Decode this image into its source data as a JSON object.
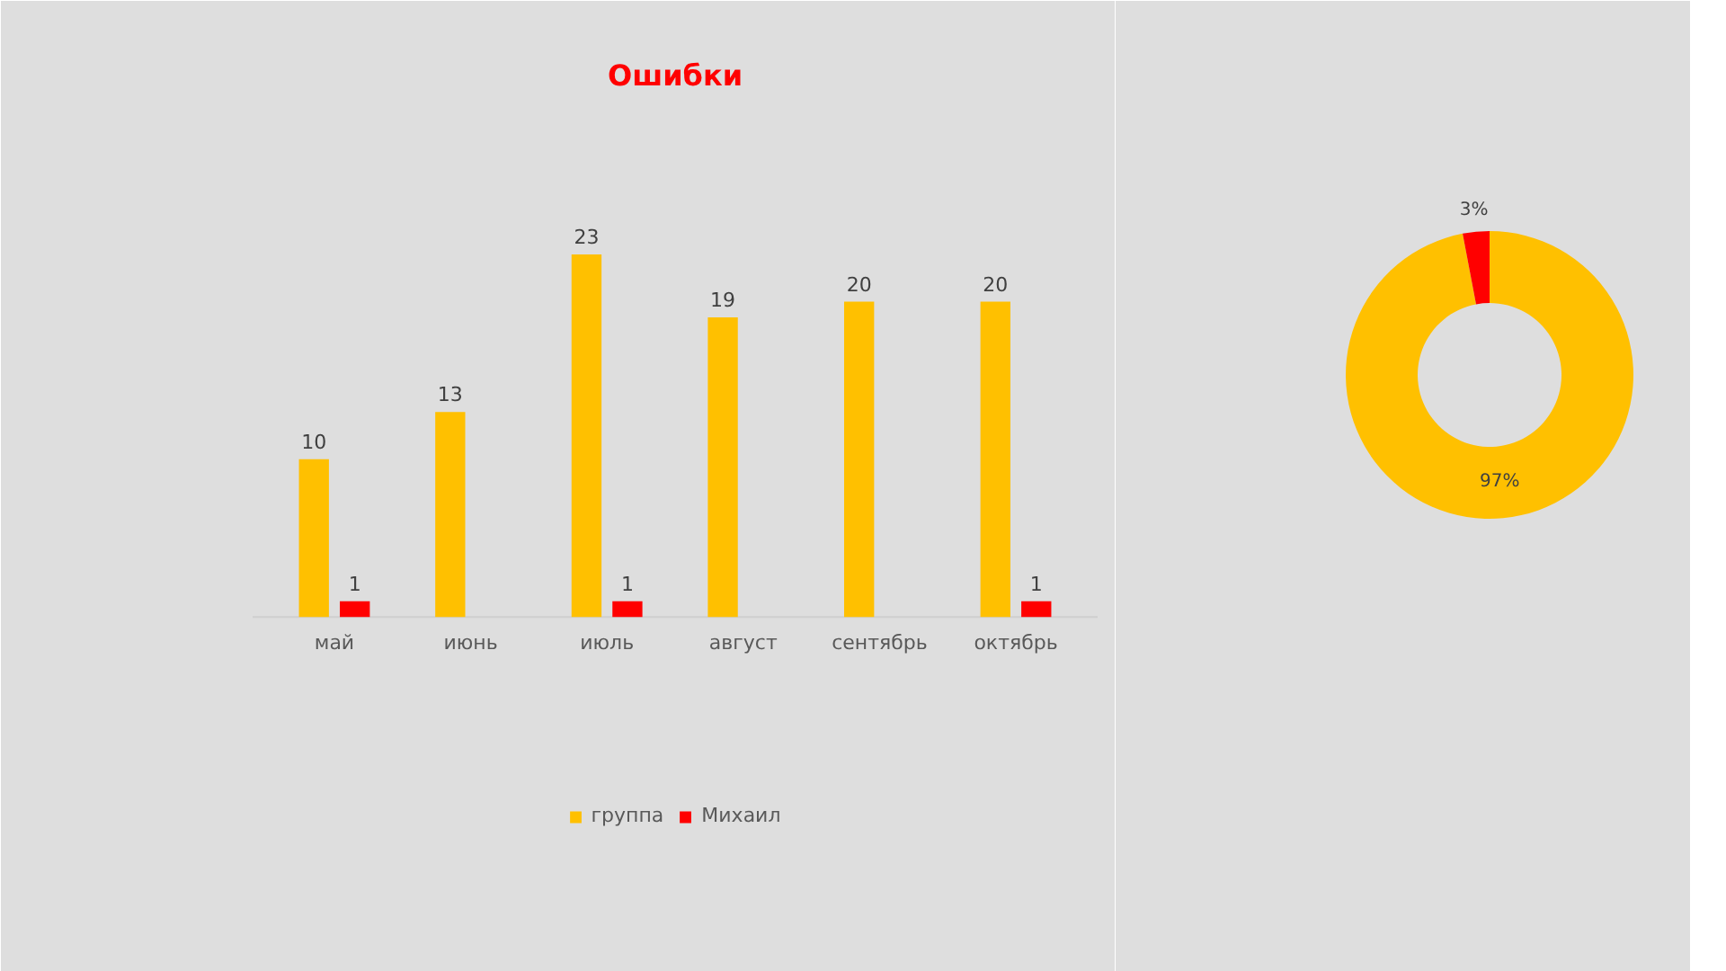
{
  "chart_data": [
    {
      "type": "bar",
      "title": "Ошибки",
      "categories": [
        "май",
        "июнь",
        "июль",
        "август",
        "сентябрь",
        "октябрь"
      ],
      "series": [
        {
          "name": "группа",
          "color": "#ffc000",
          "values": [
            10,
            13,
            23,
            19,
            20,
            20
          ]
        },
        {
          "name": "Михаил",
          "color": "#ff0000",
          "values": [
            1,
            null,
            1,
            null,
            null,
            1
          ]
        }
      ],
      "data_labels": true,
      "legend": "bottom",
      "grid": false
    },
    {
      "type": "donut",
      "categories": [
        null,
        null
      ],
      "values": [
        97,
        3
      ],
      "colors": [
        "#ffc000",
        "#ff0000"
      ],
      "value_labels": [
        "97%",
        "3%"
      ]
    }
  ]
}
